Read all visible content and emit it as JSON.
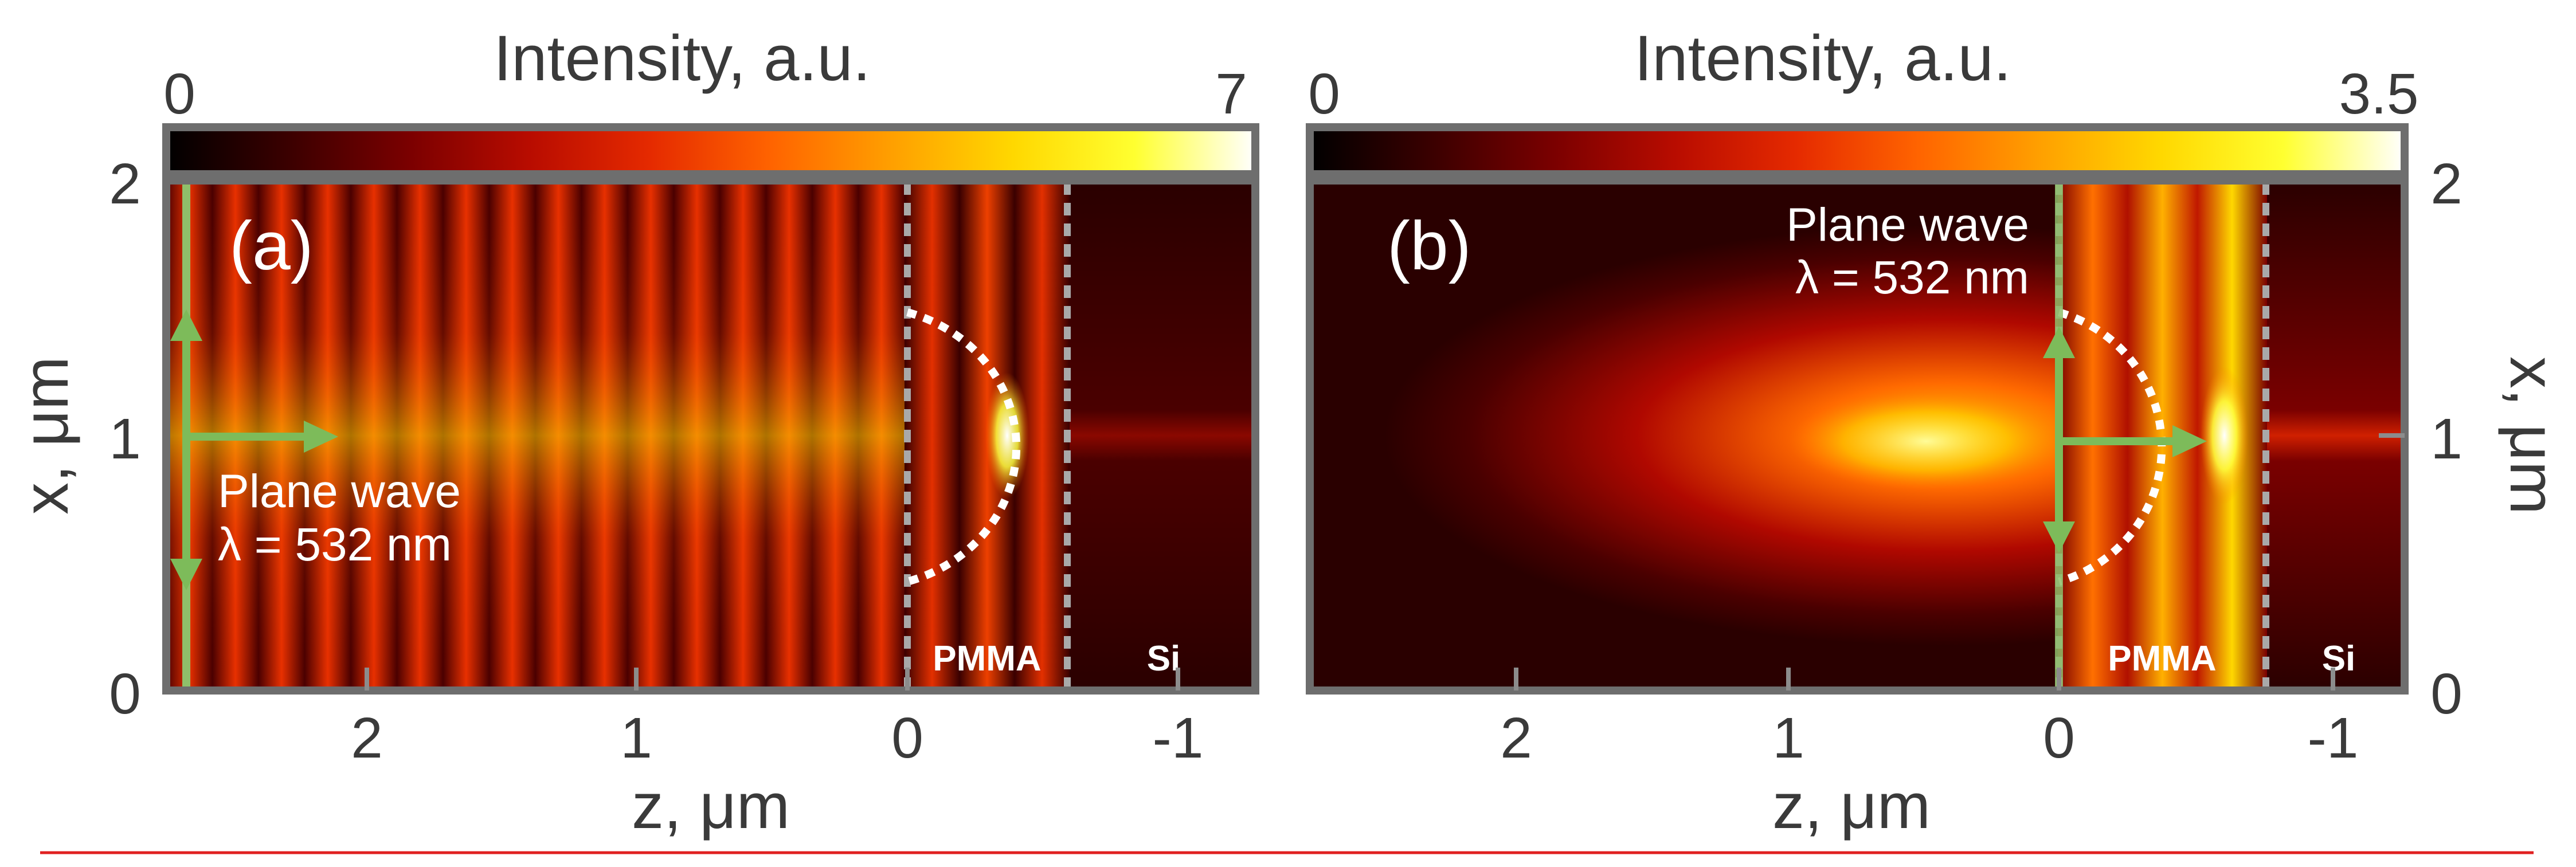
{
  "colors": {
    "frame": "#6e6e6e",
    "annotation_green": "#8fbf6a",
    "arrow_green": "#7dbb5a",
    "dotted": "#ffffff",
    "interface": "#a9a9a9",
    "footer_rule": "#e02020",
    "colormap": [
      "#000000",
      "#3a0000",
      "#7a0000",
      "#b80c00",
      "#e52a00",
      "#ff6400",
      "#ffa000",
      "#ffd800",
      "#ffff30",
      "#ffffff"
    ]
  },
  "chart_data": [
    {
      "type": "heatmap",
      "panel_label": "(a)",
      "colorbar": {
        "label": "Intensity, a.u.",
        "min_label": "0",
        "max_label": "7",
        "range": [
          0,
          7
        ]
      },
      "xlabel": "z, μm",
      "ylabel": "x, μm",
      "xlim": [
        2.7,
        -1.25
      ],
      "ylim": [
        0,
        2
      ],
      "x_ticks": [
        "2",
        "1",
        "0",
        "-1"
      ],
      "x_tick_values": [
        2,
        1,
        0,
        -1
      ],
      "y_ticks": [
        "0",
        "1",
        "2"
      ],
      "y_tick_values": [
        0,
        1,
        2
      ],
      "y_axis_side": "left",
      "region_labels": [
        "PMMA",
        "Si"
      ],
      "annotation_lines": [
        "Plane wave",
        "λ = 532 nm"
      ],
      "interfaces_z": [
        0,
        -0.55
      ],
      "lens_semicircle": {
        "center_z": 0,
        "center_x": 1,
        "radius": 0.5
      },
      "source_plane_z": 2.6,
      "arrow": {
        "from_z": 2.6,
        "to_z": 2.05,
        "x": 1
      },
      "fringe_period_z": 0.266,
      "focus": {
        "z": -0.35,
        "x": 1
      }
    },
    {
      "type": "heatmap",
      "panel_label": "(b)",
      "colorbar": {
        "label": "Intensity, a.u.",
        "min_label": "0",
        "max_label": "3.5",
        "range": [
          0,
          3.5
        ]
      },
      "xlabel": "z, μm",
      "ylabel": "x, μm",
      "xlim": [
        2.7,
        -1.25
      ],
      "ylim": [
        0,
        2
      ],
      "x_ticks": [
        "2",
        "1",
        "0",
        "-1"
      ],
      "x_tick_values": [
        2,
        1,
        0,
        -1
      ],
      "y_ticks": [
        "0",
        "1",
        "2"
      ],
      "y_tick_values": [
        0,
        1,
        2
      ],
      "y_axis_side": "right",
      "region_labels": [
        "PMMA",
        "Si"
      ],
      "annotation_lines": [
        "Plane wave",
        "λ = 532 nm"
      ],
      "interfaces_z": [
        0,
        -0.75
      ],
      "lens_semicircle": {
        "center_z": 0,
        "center_x": 1,
        "radius": 0.5
      },
      "source_plane_z": 0,
      "arrow": {
        "from_z": 0,
        "to_z": -0.5,
        "x": 1
      },
      "focus": {
        "z": -0.6,
        "x": 1
      }
    }
  ]
}
